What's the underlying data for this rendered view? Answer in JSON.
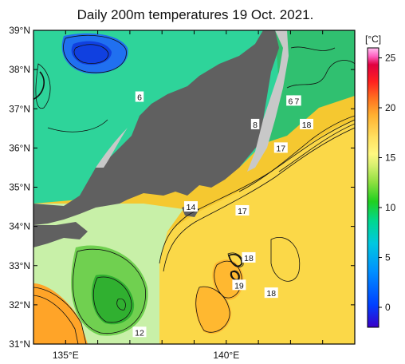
{
  "title": "Daily 200m temperatures 19 Oct. 2021.",
  "lat_labels": [
    "39°N",
    "38°N",
    "37°N",
    "36°N",
    "35°N",
    "34°N",
    "33°N",
    "32°N",
    "31°N"
  ],
  "lon_labels": [
    "135°E",
    "140°E"
  ],
  "colorbar": {
    "unit": "[°C]",
    "ticks": [
      "25",
      "20",
      "15",
      "10",
      "5",
      "0"
    ],
    "range": [
      -2,
      26
    ],
    "colors": [
      "#3a00c8",
      "#0040ff",
      "#0090ff",
      "#00c8e0",
      "#00d890",
      "#20d020",
      "#90e040",
      "#d8f070",
      "#fff880",
      "#ffe060",
      "#ffb030",
      "#ff7020",
      "#ff2020",
      "#e00040",
      "#ff60c0",
      "#ffc0f0"
    ]
  },
  "contour_labels": [
    {
      "text": "6",
      "lon": 137.3,
      "lat": 37.3
    },
    {
      "text": "6",
      "lon": 142.0,
      "lat": 37.2
    },
    {
      "text": "7",
      "lon": 142.2,
      "lat": 37.2
    },
    {
      "text": "8",
      "lon": 140.9,
      "lat": 36.6
    },
    {
      "text": "18",
      "lon": 142.5,
      "lat": 36.6
    },
    {
      "text": "17",
      "lon": 141.7,
      "lat": 36.0
    },
    {
      "text": "14",
      "lon": 138.9,
      "lat": 34.5
    },
    {
      "text": "17",
      "lon": 140.5,
      "lat": 34.4
    },
    {
      "text": "18",
      "lon": 140.7,
      "lat": 33.2
    },
    {
      "text": "19",
      "lon": 140.4,
      "lat": 32.5
    },
    {
      "text": "18",
      "lon": 141.4,
      "lat": 32.3
    },
    {
      "text": "12",
      "lon": 137.3,
      "lat": 31.3
    }
  ]
}
